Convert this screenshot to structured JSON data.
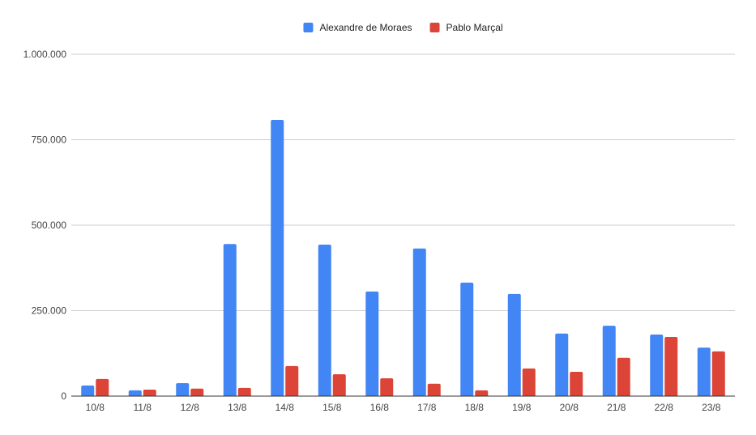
{
  "chart_data": {
    "type": "bar",
    "title": "",
    "xlabel": "",
    "ylabel": "",
    "categories": [
      "10/8",
      "11/8",
      "12/8",
      "13/8",
      "14/8",
      "15/8",
      "16/8",
      "17/8",
      "18/8",
      "19/8",
      "20/8",
      "21/8",
      "22/8",
      "23/8"
    ],
    "series": [
      {
        "name": "Alexandre de Moraes",
        "color": "#4285f4",
        "values": [
          31000,
          17000,
          38000,
          445000,
          808000,
          443000,
          306000,
          432000,
          332000,
          299000,
          183000,
          206000,
          180000,
          142000
        ]
      },
      {
        "name": "Pablo Marçal",
        "color": "#db4437",
        "values": [
          50000,
          19000,
          22000,
          24000,
          88000,
          64000,
          52000,
          36000,
          17000,
          81000,
          71000,
          112000,
          173000,
          131000
        ]
      }
    ],
    "ylim": [
      0,
      1000000
    ],
    "yticks": [
      0,
      250000,
      500000,
      750000,
      1000000
    ],
    "ytick_labels": [
      "0",
      "250.000",
      "500.000",
      "750.000",
      "1.000.000"
    ],
    "grid": true,
    "legend_position": "top-center"
  }
}
